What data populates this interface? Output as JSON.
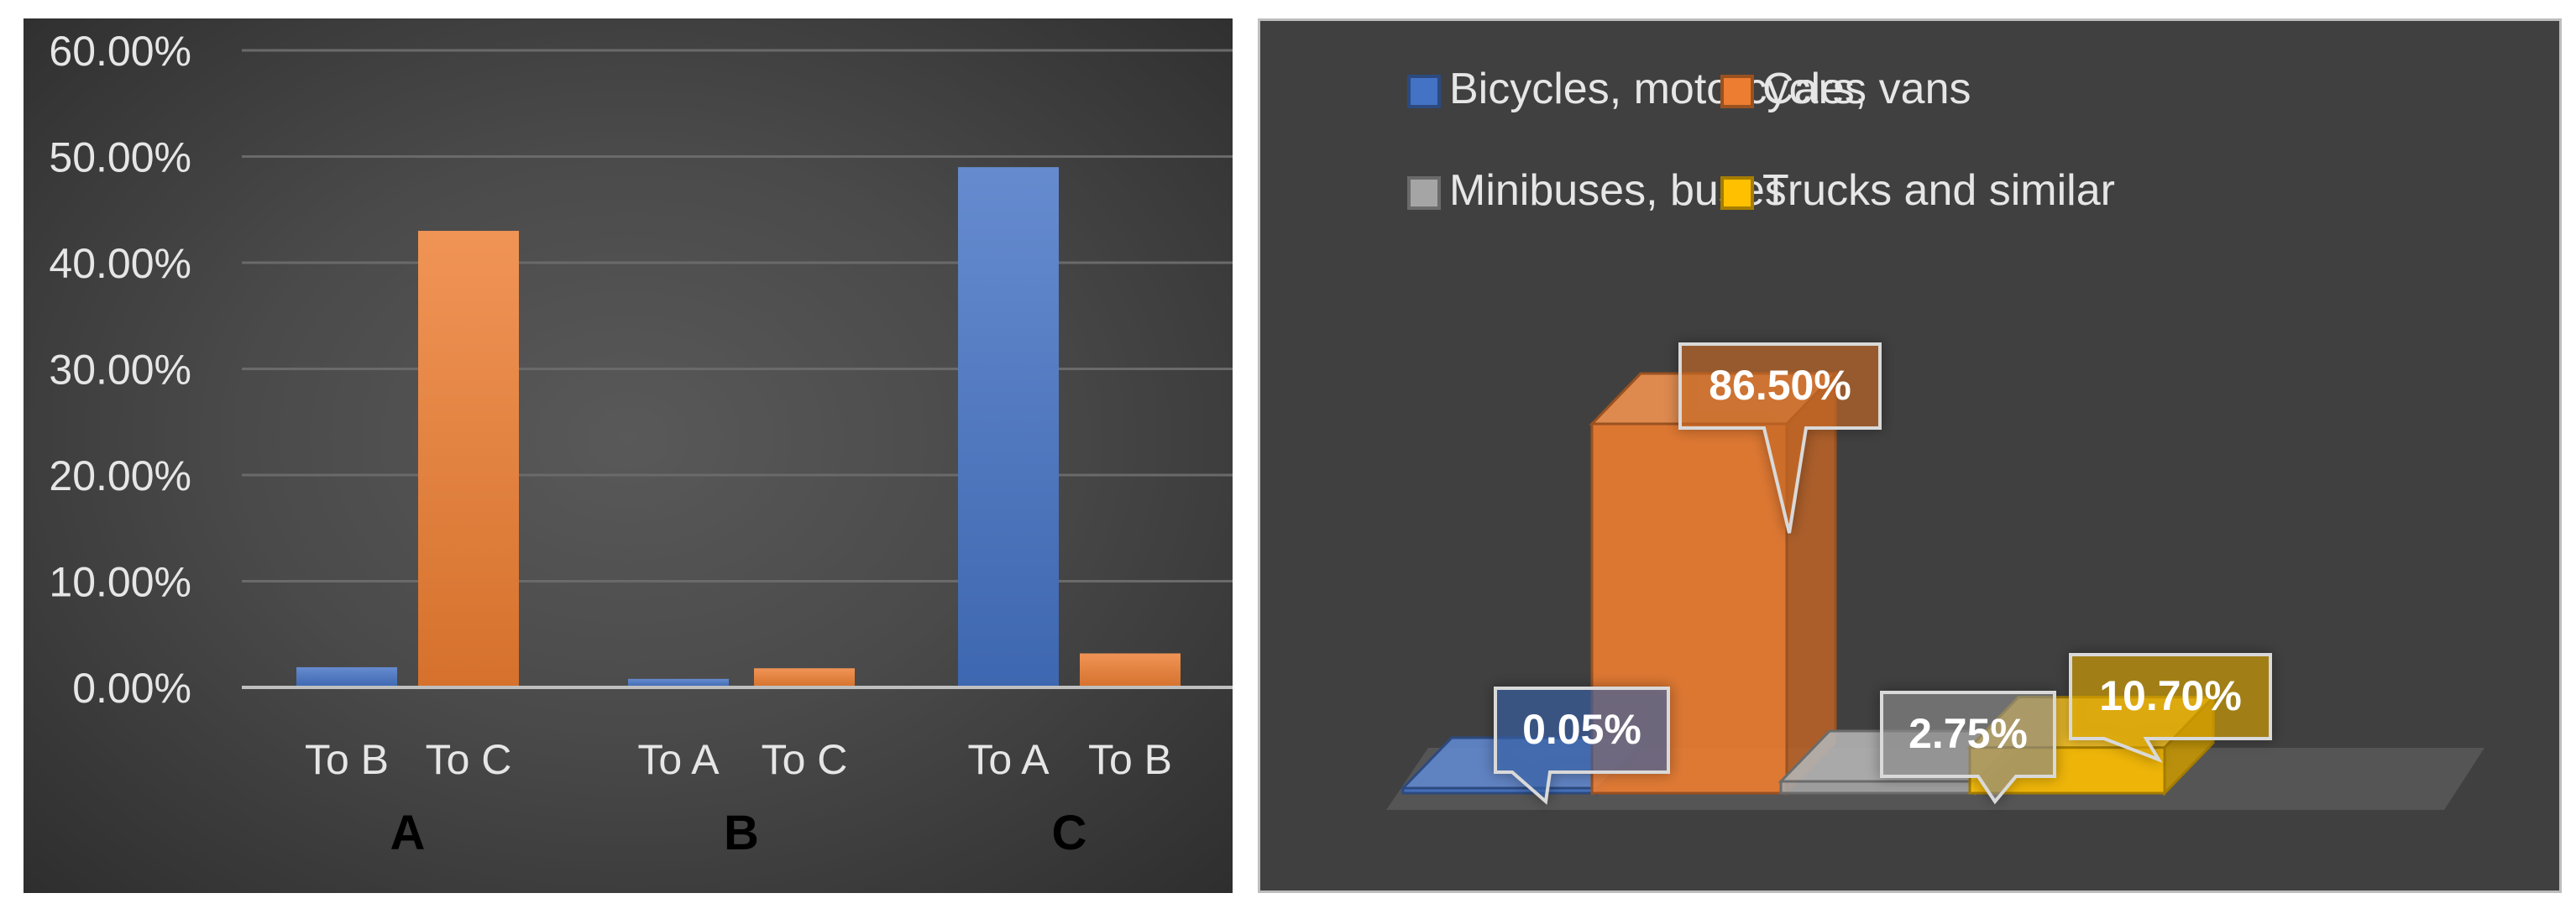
{
  "chart_data": [
    {
      "type": "bar",
      "groups": [
        "A",
        "B",
        "C"
      ],
      "categories": [
        "To B",
        "To C",
        "To A",
        "To C",
        "To A",
        "To B"
      ],
      "group_of_category": [
        "A",
        "A",
        "B",
        "B",
        "C",
        "C"
      ],
      "series_color_by_destination": true,
      "values": [
        0.019,
        0.43,
        0.008,
        0.018,
        0.49,
        0.032
      ],
      "bar_colors": [
        "#4472c4",
        "#ed7d31",
        "#4472c4",
        "#ed7d31",
        "#4472c4",
        "#ed7d31"
      ],
      "ylim": [
        0,
        0.6
      ],
      "yticks": [
        "0.00%",
        "10.00%",
        "20.00%",
        "30.00%",
        "40.00%",
        "50.00%",
        "60.00%"
      ],
      "grid": true,
      "title": "",
      "xlabel": "",
      "ylabel": ""
    },
    {
      "type": "bar",
      "style": "3d",
      "series": [
        {
          "name": "Bicycles, motorcycles",
          "values": [
            0.0005
          ],
          "label": "0.05%",
          "color": "#4472c4"
        },
        {
          "name": "Cars, vans",
          "values": [
            0.865
          ],
          "label": "86.50%",
          "color": "#ed7d31"
        },
        {
          "name": "Minibuses, buses",
          "values": [
            0.0275
          ],
          "label": "2.75%",
          "color": "#a5a5a5"
        },
        {
          "name": "Trucks and similar",
          "values": [
            0.107
          ],
          "label": "10.70%",
          "color": "#ffc000"
        }
      ],
      "legend": "top",
      "title": ""
    }
  ]
}
